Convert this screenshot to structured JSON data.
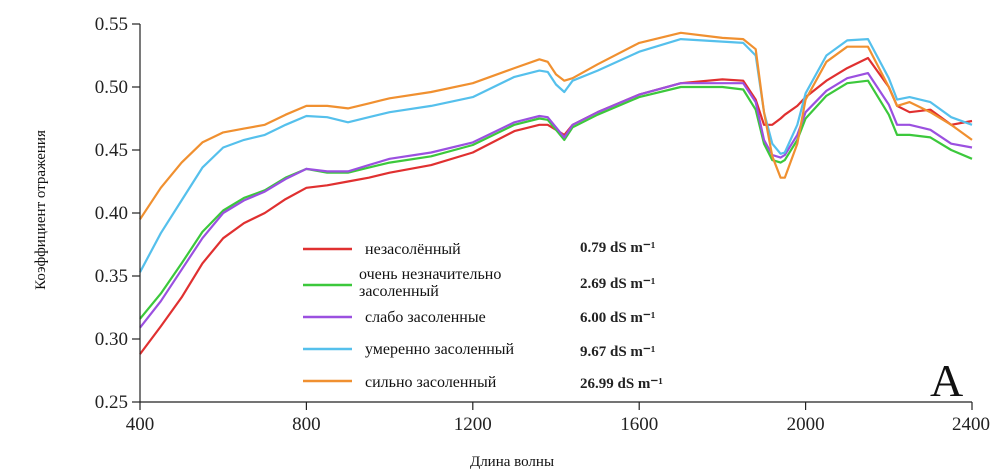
{
  "chart_data": {
    "type": "line",
    "title": "",
    "xlabel": "Длина волны",
    "ylabel": "Коэффициент отражения",
    "xlim": [
      400,
      2400
    ],
    "ylim": [
      0.25,
      0.55
    ],
    "xticks": [
      "400",
      "800",
      "1200",
      "1600",
      "2000",
      "2400"
    ],
    "yticks": [
      "0.25",
      "0.30",
      "0.35",
      "0.40",
      "0.45",
      "0.50",
      "0.55"
    ],
    "panel_label": "A",
    "legend_position": "lower-center",
    "series": [
      {
        "name": "незасолённый",
        "ec": "0.79 dS m⁻¹",
        "color": "#e03030",
        "x": [
          400,
          450,
          500,
          550,
          600,
          650,
          700,
          750,
          800,
          850,
          900,
          950,
          1000,
          1100,
          1200,
          1300,
          1360,
          1380,
          1400,
          1420,
          1440,
          1500,
          1600,
          1700,
          1800,
          1850,
          1880,
          1900,
          1920,
          1940,
          1950,
          1980,
          2000,
          2050,
          2100,
          2150,
          2200,
          2220,
          2250,
          2300,
          2350,
          2400
        ],
        "y": [
          0.288,
          0.31,
          0.333,
          0.36,
          0.38,
          0.392,
          0.4,
          0.411,
          0.42,
          0.422,
          0.425,
          0.428,
          0.432,
          0.438,
          0.448,
          0.465,
          0.47,
          0.47,
          0.466,
          0.462,
          0.47,
          0.48,
          0.494,
          0.503,
          0.506,
          0.505,
          0.49,
          0.47,
          0.47,
          0.475,
          0.478,
          0.485,
          0.492,
          0.505,
          0.515,
          0.523,
          0.5,
          0.485,
          0.48,
          0.482,
          0.47,
          0.473
        ]
      },
      {
        "name": "очень незначительно засоленный",
        "ec": "2.69 dS m⁻¹",
        "color": "#3cc83c",
        "x": [
          400,
          450,
          500,
          550,
          600,
          650,
          700,
          750,
          800,
          850,
          900,
          950,
          1000,
          1100,
          1200,
          1300,
          1360,
          1380,
          1400,
          1420,
          1440,
          1500,
          1600,
          1700,
          1800,
          1850,
          1880,
          1900,
          1920,
          1940,
          1950,
          1980,
          2000,
          2050,
          2100,
          2150,
          2200,
          2220,
          2250,
          2300,
          2350,
          2400
        ],
        "y": [
          0.316,
          0.336,
          0.36,
          0.385,
          0.402,
          0.412,
          0.418,
          0.428,
          0.435,
          0.432,
          0.432,
          0.436,
          0.44,
          0.445,
          0.454,
          0.47,
          0.475,
          0.474,
          0.466,
          0.458,
          0.468,
          0.478,
          0.492,
          0.5,
          0.5,
          0.498,
          0.482,
          0.455,
          0.442,
          0.44,
          0.442,
          0.458,
          0.475,
          0.493,
          0.503,
          0.505,
          0.478,
          0.462,
          0.462,
          0.46,
          0.45,
          0.443
        ]
      },
      {
        "name": "слабо засоленные",
        "ec": "6.00 dS m⁻¹",
        "color": "#9b50e0",
        "x": [
          400,
          450,
          500,
          550,
          600,
          650,
          700,
          750,
          800,
          850,
          900,
          950,
          1000,
          1100,
          1200,
          1300,
          1360,
          1380,
          1400,
          1420,
          1440,
          1500,
          1600,
          1700,
          1800,
          1850,
          1880,
          1900,
          1920,
          1940,
          1950,
          1980,
          2000,
          2050,
          2100,
          2150,
          2200,
          2220,
          2250,
          2300,
          2350,
          2400
        ],
        "y": [
          0.309,
          0.33,
          0.355,
          0.38,
          0.4,
          0.41,
          0.417,
          0.427,
          0.435,
          0.433,
          0.433,
          0.438,
          0.443,
          0.448,
          0.456,
          0.472,
          0.477,
          0.476,
          0.468,
          0.46,
          0.47,
          0.48,
          0.494,
          0.503,
          0.503,
          0.503,
          0.488,
          0.458,
          0.446,
          0.444,
          0.446,
          0.462,
          0.48,
          0.497,
          0.507,
          0.511,
          0.486,
          0.47,
          0.47,
          0.466,
          0.455,
          0.452
        ]
      },
      {
        "name": "умеренно засоленный",
        "ec": "9.67 dS m⁻¹",
        "color": "#55c0ec",
        "x": [
          400,
          450,
          500,
          550,
          600,
          650,
          700,
          750,
          800,
          850,
          900,
          950,
          1000,
          1100,
          1200,
          1300,
          1360,
          1380,
          1400,
          1420,
          1440,
          1500,
          1600,
          1700,
          1800,
          1850,
          1880,
          1900,
          1920,
          1940,
          1950,
          1980,
          2000,
          2050,
          2100,
          2150,
          2200,
          2220,
          2250,
          2300,
          2350,
          2400
        ],
        "y": [
          0.353,
          0.384,
          0.41,
          0.436,
          0.452,
          0.458,
          0.462,
          0.47,
          0.477,
          0.476,
          0.472,
          0.476,
          0.48,
          0.485,
          0.492,
          0.508,
          0.513,
          0.512,
          0.502,
          0.496,
          0.505,
          0.513,
          0.528,
          0.538,
          0.536,
          0.535,
          0.525,
          0.48,
          0.455,
          0.447,
          0.448,
          0.47,
          0.495,
          0.525,
          0.537,
          0.538,
          0.507,
          0.49,
          0.492,
          0.488,
          0.476,
          0.47
        ]
      },
      {
        "name": "сильно засоленный",
        "ec": "26.99 dS m⁻¹",
        "color": "#f09030",
        "x": [
          400,
          450,
          500,
          550,
          600,
          650,
          700,
          750,
          800,
          850,
          900,
          950,
          1000,
          1100,
          1200,
          1300,
          1360,
          1380,
          1400,
          1420,
          1440,
          1500,
          1600,
          1700,
          1800,
          1850,
          1880,
          1900,
          1920,
          1940,
          1950,
          1980,
          2000,
          2050,
          2100,
          2150,
          2200,
          2220,
          2250,
          2300,
          2350,
          2400
        ],
        "y": [
          0.395,
          0.42,
          0.44,
          0.456,
          0.464,
          0.467,
          0.47,
          0.478,
          0.485,
          0.485,
          0.483,
          0.487,
          0.491,
          0.496,
          0.503,
          0.515,
          0.522,
          0.52,
          0.51,
          0.505,
          0.507,
          0.518,
          0.535,
          0.543,
          0.539,
          0.538,
          0.53,
          0.48,
          0.445,
          0.428,
          0.428,
          0.455,
          0.49,
          0.52,
          0.532,
          0.532,
          0.5,
          0.485,
          0.488,
          0.48,
          0.47,
          0.458
        ]
      }
    ]
  }
}
